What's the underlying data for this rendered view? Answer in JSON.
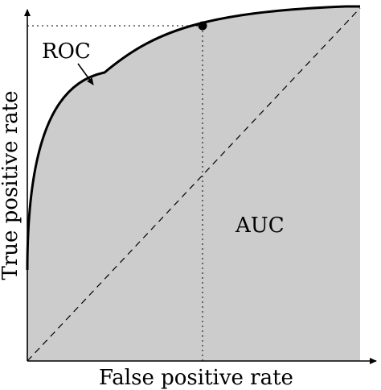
{
  "diagram": {
    "curve_label": "ROC",
    "area_label": "AUC",
    "x_axis_label": "False positive rate",
    "y_axis_label": "True positive rate"
  },
  "colors": {
    "area_fill": "#cccccc",
    "stroke": "#000000",
    "background": "#ffffff"
  }
}
